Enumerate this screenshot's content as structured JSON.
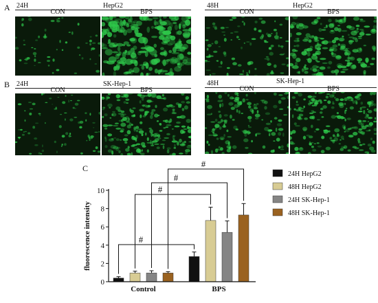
{
  "panels": {
    "A": {
      "letter": "A",
      "left": {
        "time": "24H",
        "cell": "HepG2",
        "con": "CON",
        "bps": "BPS"
      },
      "right": {
        "time": "48H",
        "cell": "HepG2",
        "con": "CON",
        "bps": "BPS"
      }
    },
    "B": {
      "letter": "B",
      "left": {
        "time": "24H",
        "cell": "SK-Hep-1",
        "con": "CON",
        "bps": "BPS"
      },
      "right": {
        "time": "48H",
        "cell": "SK-Hep-1",
        "con": "CON",
        "bps": "BPS"
      }
    },
    "C": {
      "letter": "C"
    }
  },
  "colors": {
    "s1": "#111111",
    "s2": "#d8cc94",
    "s3": "#858585",
    "s4": "#9a6220",
    "fluor_bg": "#0a1a0a",
    "fluor_green": "#2ec84a"
  },
  "chart_data": {
    "type": "bar",
    "categories": [
      "Control",
      "BPS"
    ],
    "series": [
      {
        "name": "24H HepG2",
        "values": [
          0.4,
          2.75
        ],
        "errors": [
          0.15,
          0.5
        ]
      },
      {
        "name": "48H HepG2",
        "values": [
          0.95,
          6.7
        ],
        "errors": [
          0.2,
          1.45
        ]
      },
      {
        "name": "24H SK-Hep-1",
        "values": [
          0.95,
          5.4
        ],
        "errors": [
          0.25,
          1.25
        ]
      },
      {
        "name": "48H SK-Hep-1",
        "values": [
          0.95,
          7.3
        ],
        "errors": [
          0.15,
          1.25
        ]
      }
    ],
    "ylabel": "fluorescence intensity",
    "xlabel": "",
    "ylim": [
      0,
      10
    ],
    "yticks": [
      0,
      2,
      4,
      6,
      8,
      10
    ],
    "significance_marker": "#",
    "comparisons": [
      {
        "series": "24H HepG2",
        "marker": "#"
      },
      {
        "series": "48H HepG2",
        "marker": "#"
      },
      {
        "series": "24H SK-Hep-1",
        "marker": "#"
      },
      {
        "series": "48H SK-Hep-1",
        "marker": "#"
      }
    ],
    "legend_position": "right"
  }
}
